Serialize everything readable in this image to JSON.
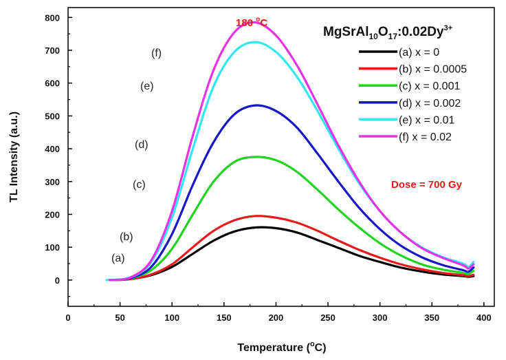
{
  "chart_data": {
    "type": "line",
    "title_parts": [
      "MgSrAl",
      "10",
      "O",
      "17",
      ":0.02Dy",
      "3+"
    ],
    "xlabel_parts": [
      "Temperature (",
      "o",
      "C)"
    ],
    "ylabel": "TL Intensity (a.u.)",
    "xlim": [
      0,
      410
    ],
    "ylim": [
      -80,
      830
    ],
    "x_ticks": [
      0,
      50,
      100,
      150,
      200,
      250,
      300,
      350,
      400
    ],
    "y_ticks": [
      0,
      100,
      200,
      300,
      400,
      500,
      600,
      700,
      800
    ],
    "peak_label_parts": [
      "180 ",
      "o",
      "C"
    ],
    "dose_label": "Dose = 700 Gy",
    "series": [
      {
        "name": "(a) x = 0",
        "curve_label": "(a)",
        "color": "#000000",
        "x": [
          45,
          60,
          80,
          100,
          120,
          140,
          160,
          180,
          200,
          220,
          240,
          260,
          280,
          300,
          320,
          340,
          360,
          380,
          385,
          390
        ],
        "y": [
          0,
          3,
          15,
          40,
          80,
          120,
          148,
          160,
          158,
          145,
          122,
          98,
          74,
          55,
          38,
          26,
          17,
          12,
          10,
          12
        ]
      },
      {
        "name": "(b) x = 0.0005",
        "curve_label": "(b)",
        "color": "#e8191a",
        "x": [
          45,
          60,
          80,
          100,
          120,
          140,
          160,
          180,
          200,
          220,
          240,
          260,
          280,
          300,
          320,
          340,
          360,
          380,
          385,
          390
        ],
        "y": [
          0,
          3,
          17,
          48,
          100,
          150,
          182,
          195,
          190,
          175,
          150,
          120,
          92,
          68,
          48,
          33,
          22,
          15,
          12,
          16
        ]
      },
      {
        "name": "(c) x = 0.001",
        "curve_label": "(c)",
        "color": "#21d41f",
        "x": [
          40,
          60,
          80,
          100,
          120,
          140,
          160,
          180,
          200,
          220,
          240,
          260,
          280,
          300,
          320,
          340,
          360,
          380,
          385,
          390
        ],
        "y": [
          0,
          5,
          30,
          95,
          200,
          300,
          360,
          375,
          365,
          330,
          275,
          215,
          160,
          112,
          75,
          48,
          32,
          22,
          18,
          28
        ]
      },
      {
        "name": "(d) x = 0.002",
        "curve_label": "(d)",
        "color": "#1717c8",
        "x": [
          40,
          60,
          80,
          100,
          120,
          140,
          160,
          180,
          200,
          220,
          240,
          260,
          280,
          300,
          320,
          340,
          360,
          380,
          385,
          390
        ],
        "y": [
          0,
          6,
          40,
          140,
          290,
          420,
          505,
          532,
          515,
          465,
          385,
          300,
          220,
          155,
          105,
          70,
          46,
          30,
          25,
          38
        ]
      },
      {
        "name": "(e) x = 0.01",
        "curve_label": "(e)",
        "color": "#33e6f2",
        "x": [
          37,
          60,
          80,
          100,
          120,
          140,
          160,
          180,
          200,
          220,
          240,
          260,
          280,
          300,
          320,
          340,
          360,
          380,
          385,
          390
        ],
        "y": [
          0,
          8,
          55,
          190,
          400,
          590,
          695,
          725,
          695,
          620,
          515,
          400,
          295,
          210,
          145,
          100,
          70,
          50,
          40,
          55
        ]
      },
      {
        "name": "(f) x = 0.02",
        "curve_label": "(f)",
        "color": "#e832e8",
        "x": [
          40,
          60,
          80,
          100,
          120,
          140,
          160,
          180,
          200,
          220,
          240,
          260,
          280,
          300,
          320,
          340,
          360,
          380,
          385,
          390
        ],
        "y": [
          0,
          8,
          60,
          210,
          440,
          640,
          755,
          785,
          745,
          655,
          535,
          410,
          300,
          210,
          145,
          98,
          68,
          45,
          35,
          48
        ]
      }
    ],
    "colors": {
      "annotation_red": "#e8191a"
    }
  }
}
